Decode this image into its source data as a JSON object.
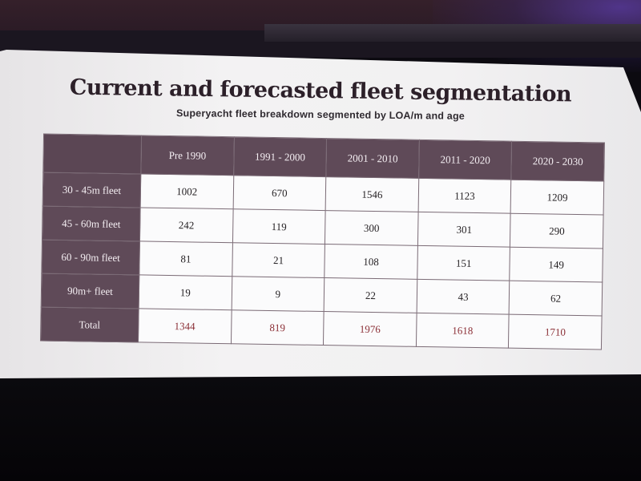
{
  "slide": {
    "title": "Current and forecasted fleet segmentation",
    "subtitle": "Superyacht fleet breakdown segmented by LOA/m and age"
  },
  "table": {
    "columns": [
      "",
      "Pre 1990",
      "1991 - 2000",
      "2001 - 2010",
      "2011 - 2020",
      "2020 - 2030"
    ],
    "rows": [
      {
        "label": "30 - 45m fleet",
        "values": [
          "1002",
          "670",
          "1546",
          "1123",
          "1209"
        ]
      },
      {
        "label": "45 - 60m fleet",
        "values": [
          "242",
          "119",
          "300",
          "301",
          "290"
        ]
      },
      {
        "label": "60 - 90m fleet",
        "values": [
          "81",
          "21",
          "108",
          "151",
          "149"
        ]
      },
      {
        "label": "90m+ fleet",
        "values": [
          "19",
          "9",
          "22",
          "43",
          "62"
        ]
      },
      {
        "label": "Total",
        "values": [
          "1344",
          "819",
          "1976",
          "1618",
          "1710"
        ]
      }
    ]
  },
  "colors": {
    "header_fill": "#5f4a58",
    "total_text": "#8b2f36",
    "title_text": "#2c2029"
  }
}
